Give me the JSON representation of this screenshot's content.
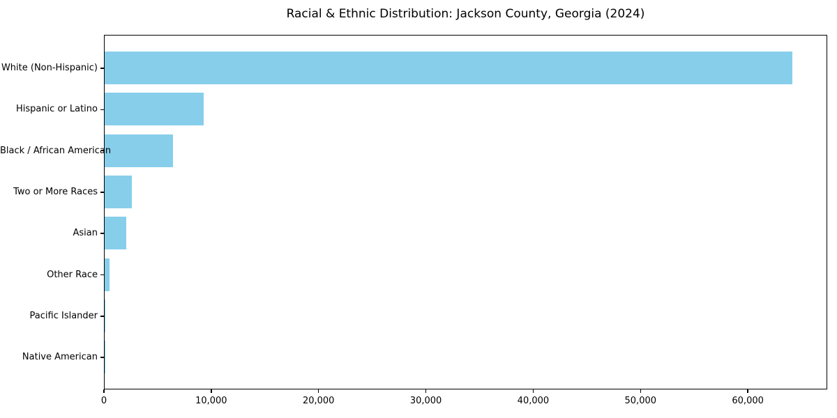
{
  "colors": {
    "bar": "#87CEEB",
    "text": "#000000",
    "frame": "#000000",
    "background": "#ffffff"
  },
  "chart_data": {
    "type": "bar",
    "orientation": "horizontal",
    "title": "Racial & Ethnic Distribution: Jackson County, Georgia (2024)",
    "categories": [
      "White (Non-Hispanic)",
      "Hispanic or Latino",
      "Black / African American",
      "Two or More Races",
      "Asian",
      "Other Race",
      "Pacific Islander",
      "Native American"
    ],
    "values": [
      64100,
      9210,
      6350,
      2520,
      2010,
      455,
      60,
      40
    ],
    "xlabel": "",
    "ylabel": "",
    "xlim": [
      0,
      67400
    ],
    "x_ticks": [
      0,
      10000,
      20000,
      30000,
      40000,
      50000,
      60000
    ],
    "x_tick_labels": [
      "0",
      "10,000",
      "20,000",
      "30,000",
      "40,000",
      "50,000",
      "60,000"
    ],
    "bar_color_name": "skyblue",
    "grid": false,
    "legend": "none"
  }
}
